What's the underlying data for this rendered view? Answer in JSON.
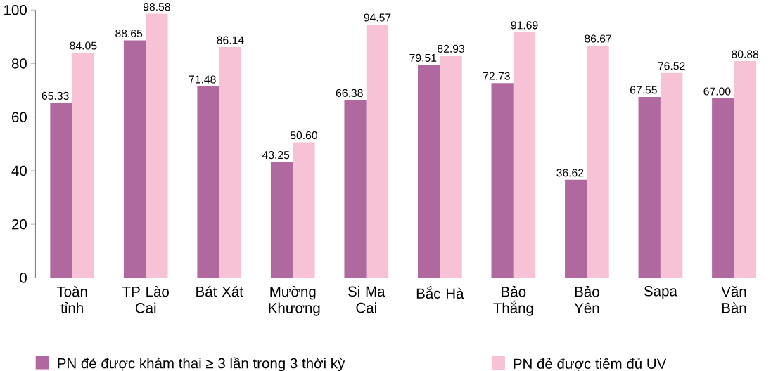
{
  "chart_data": {
    "type": "bar",
    "categories": [
      "Toàn tỉnh",
      "TP Lào Cai",
      "Bát Xát",
      "Mường Khương",
      "Si Ma Cai",
      "Bắc Hà",
      "Bảo Thắng",
      "Bảo Yên",
      "Sapa",
      "Văn Bàn"
    ],
    "series": [
      {
        "name": "PN đẻ được khám thai ≥ 3 lần trong 3 thời kỳ",
        "color": "#b0699f",
        "values": [
          65.33,
          88.65,
          71.48,
          43.25,
          66.38,
          79.51,
          72.73,
          36.62,
          67.55,
          67.0
        ],
        "value_labels": [
          "65.33",
          "88.65",
          "71.48",
          "43.25",
          "66.38",
          "79.51",
          "72.73",
          "36.62",
          "67.55",
          "67.00"
        ]
      },
      {
        "name": "PN đẻ được tiêm đủ UV",
        "color": "#f7c2d6",
        "values": [
          84.05,
          98.58,
          86.14,
          50.6,
          94.57,
          82.93,
          91.69,
          86.67,
          76.52,
          80.88
        ],
        "value_labels": [
          "84.05",
          "98.58",
          "86.14",
          "50.60",
          "94.57",
          "82.93",
          "91.69",
          "86.67",
          "76.52",
          "80.88"
        ]
      }
    ],
    "ylim": [
      0,
      100
    ],
    "yticks": [
      0,
      20,
      40,
      60,
      80,
      100
    ],
    "grid": false,
    "legend": "bottom"
  }
}
